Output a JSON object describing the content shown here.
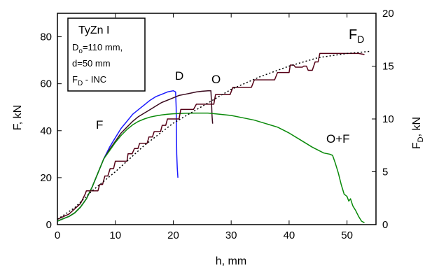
{
  "chart_data": {
    "type": "line",
    "xlabel": "h, mm",
    "ylabel_left": "F,  kN",
    "ylabel_right_main": "F",
    "ylabel_right_sub": "D",
    "ylabel_right_unit": ",  kN",
    "xlim": [
      0,
      55
    ],
    "ylim_left": [
      0,
      90
    ],
    "ylim_right": [
      0,
      20
    ],
    "x_ticks": [
      0,
      10,
      20,
      30,
      40,
      50
    ],
    "y_ticks_left": [
      0,
      20,
      40,
      60,
      80
    ],
    "y_ticks_right": [
      0,
      5,
      10,
      15,
      20
    ],
    "grid": false,
    "legend_box": {
      "line1": "TyZn I",
      "line2_main": "D",
      "line2_sub": "o",
      "line2_rest": "=110 mm,",
      "line3": "d=50 mm",
      "line4_main": "F",
      "line4_sub": "D",
      "line4_rest": " - INC"
    },
    "annotations": {
      "F": "F",
      "D": "D",
      "O": "O",
      "OF": "O+F",
      "FD_main": "F",
      "FD_sub": "D"
    },
    "series": [
      {
        "name": "D",
        "axis": "left",
        "color": "#1a1aff",
        "points": [
          [
            0,
            1.5
          ],
          [
            1,
            2.5
          ],
          [
            2,
            3.5
          ],
          [
            3,
            5
          ],
          [
            4,
            7.5
          ],
          [
            5,
            11
          ],
          [
            6,
            16
          ],
          [
            7,
            22
          ],
          [
            8,
            28
          ],
          [
            9,
            33
          ],
          [
            10,
            37
          ],
          [
            11,
            41
          ],
          [
            12,
            44
          ],
          [
            13,
            47
          ],
          [
            14,
            49
          ],
          [
            15,
            51
          ],
          [
            16,
            53
          ],
          [
            17,
            54.5
          ],
          [
            18,
            55.5
          ],
          [
            19,
            56.5
          ],
          [
            20,
            57
          ],
          [
            20.4,
            56.5
          ],
          [
            20.5,
            50
          ],
          [
            20.6,
            30
          ],
          [
            20.7,
            24
          ],
          [
            20.8,
            20
          ]
        ]
      },
      {
        "name": "O",
        "axis": "left",
        "color": "#3a0a1e",
        "points": [
          [
            0,
            1.5
          ],
          [
            1,
            2.5
          ],
          [
            2,
            3.5
          ],
          [
            3,
            5
          ],
          [
            4,
            7.5
          ],
          [
            5,
            11
          ],
          [
            6,
            16
          ],
          [
            7,
            22
          ],
          [
            8,
            28
          ],
          [
            9,
            32
          ],
          [
            10,
            35.5
          ],
          [
            11,
            39
          ],
          [
            12,
            41.5
          ],
          [
            13,
            44
          ],
          [
            14,
            46
          ],
          [
            15,
            47.5
          ],
          [
            16,
            49
          ],
          [
            17,
            50.5
          ],
          [
            18,
            52
          ],
          [
            19,
            53
          ],
          [
            20,
            54
          ],
          [
            21,
            55
          ],
          [
            22,
            55.5
          ],
          [
            23,
            56
          ],
          [
            24,
            56.5
          ],
          [
            25,
            56.8
          ],
          [
            26,
            57
          ],
          [
            26.5,
            57
          ],
          [
            26.6,
            52
          ],
          [
            26.7,
            46
          ],
          [
            26.8,
            43
          ]
        ]
      },
      {
        "name": "O+F",
        "axis": "left",
        "color": "#0a8a0a",
        "points": [
          [
            0,
            1.5
          ],
          [
            1,
            2.5
          ],
          [
            2,
            3.5
          ],
          [
            3,
            5
          ],
          [
            4,
            7.5
          ],
          [
            5,
            11
          ],
          [
            6,
            16
          ],
          [
            7,
            22
          ],
          [
            8,
            28
          ],
          [
            9,
            31.5
          ],
          [
            10,
            35
          ],
          [
            11,
            38
          ],
          [
            12,
            40.5
          ],
          [
            13,
            42.5
          ],
          [
            14,
            44
          ],
          [
            15,
            45
          ],
          [
            16,
            45.8
          ],
          [
            17,
            46.3
          ],
          [
            18,
            46.7
          ],
          [
            19,
            47
          ],
          [
            20,
            47.2
          ],
          [
            22,
            47.4
          ],
          [
            24,
            47.5
          ],
          [
            26,
            47.5
          ],
          [
            28,
            47
          ],
          [
            30,
            46.5
          ],
          [
            32,
            45.5
          ],
          [
            34,
            44.5
          ],
          [
            36,
            43
          ],
          [
            38,
            41.5
          ],
          [
            40,
            39
          ],
          [
            42,
            36
          ],
          [
            44,
            33
          ],
          [
            46,
            30.5
          ],
          [
            47,
            30
          ],
          [
            47.5,
            29.5
          ],
          [
            48,
            26
          ],
          [
            48.5,
            22
          ],
          [
            49,
            17
          ],
          [
            49.5,
            13
          ],
          [
            50,
            12
          ],
          [
            50.3,
            10
          ],
          [
            50.6,
            11
          ],
          [
            51,
            8
          ],
          [
            51.5,
            6
          ],
          [
            52,
            3.5
          ],
          [
            52.5,
            1.5
          ],
          [
            53,
            0.8
          ]
        ]
      },
      {
        "name": "F_D",
        "axis": "right",
        "color": "#550016",
        "points": [
          [
            0,
            0.5
          ],
          [
            2,
            1
          ],
          [
            4,
            2
          ],
          [
            4.8,
            2.9
          ],
          [
            5,
            3.2
          ],
          [
            7,
            3.2
          ],
          [
            7.3,
            3.8
          ],
          [
            7.8,
            3.8
          ],
          [
            8.2,
            4.6
          ],
          [
            8.7,
            4.6
          ],
          [
            9.1,
            5.3
          ],
          [
            9.7,
            5.3
          ],
          [
            10,
            6
          ],
          [
            12,
            6
          ],
          [
            12.2,
            6.7
          ],
          [
            12.9,
            6.7
          ],
          [
            13.3,
            7.2
          ],
          [
            13.9,
            7.2
          ],
          [
            14.2,
            7.7
          ],
          [
            15.5,
            7.7
          ],
          [
            15.8,
            8.3
          ],
          [
            16.4,
            8.3
          ],
          [
            16.7,
            8.8
          ],
          [
            17.8,
            8.8
          ],
          [
            18.1,
            9.4
          ],
          [
            18.7,
            9.4
          ],
          [
            19,
            10
          ],
          [
            20,
            10
          ],
          [
            21,
            10
          ],
          [
            21.3,
            10.9
          ],
          [
            23.5,
            10.9
          ],
          [
            24,
            11.4
          ],
          [
            26,
            11.4
          ],
          [
            27,
            11.4
          ],
          [
            27.3,
            12.3
          ],
          [
            29.8,
            12.3
          ],
          [
            30.3,
            13
          ],
          [
            33.5,
            13
          ],
          [
            34,
            13.7
          ],
          [
            37.5,
            13.7
          ],
          [
            38,
            14.4
          ],
          [
            40,
            14.4
          ],
          [
            40.2,
            15.1
          ],
          [
            40.8,
            15.1
          ],
          [
            41.1,
            14.9
          ],
          [
            42.3,
            14.9
          ],
          [
            42.5,
            15
          ],
          [
            43,
            15
          ],
          [
            43.3,
            14.6
          ],
          [
            44,
            14.6
          ],
          [
            44.5,
            15.4
          ],
          [
            45,
            15.4
          ],
          [
            45.3,
            16.2
          ],
          [
            47,
            16.2
          ],
          [
            52,
            16.2
          ],
          [
            53,
            16.1
          ]
        ]
      },
      {
        "name": "F_D trend",
        "axis": "right",
        "color": "#000000",
        "dashed": true,
        "points": [
          [
            0,
            0.5
          ],
          [
            3,
            1.6
          ],
          [
            6,
            3.2
          ],
          [
            10,
            5
          ],
          [
            15,
            7.5
          ],
          [
            20,
            9.6
          ],
          [
            25,
            11.2
          ],
          [
            30,
            12.8
          ],
          [
            35,
            14
          ],
          [
            40,
            15
          ],
          [
            45,
            15.8
          ],
          [
            50,
            16.2
          ],
          [
            54,
            16.4
          ]
        ]
      }
    ]
  }
}
